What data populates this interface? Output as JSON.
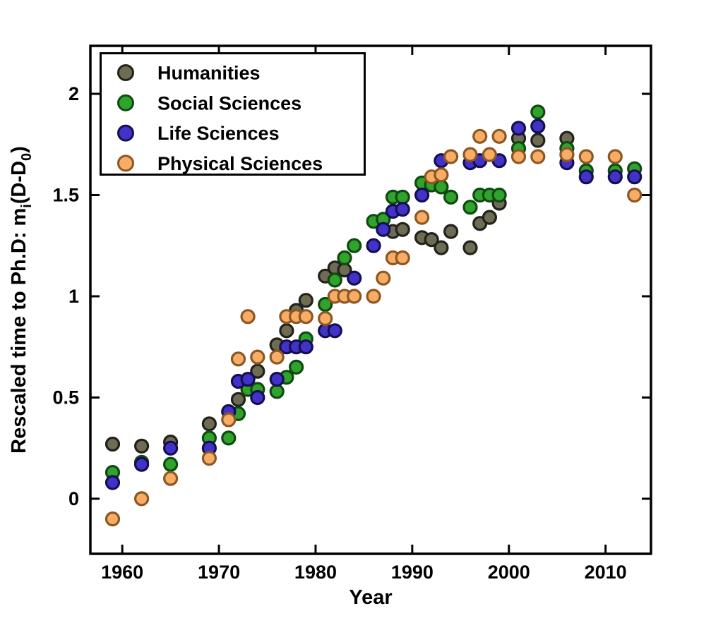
{
  "chart_data": {
    "type": "scatter",
    "title": "",
    "xlabel": "Year",
    "ylabel": "Rescaled time to Ph.D: m_i(D-D_0)",
    "ylabel_parts": [
      {
        "t": "Rescaled time to Ph.D: m",
        "sub": false
      },
      {
        "t": "i",
        "sub": true
      },
      {
        "t": "(D-D",
        "sub": false
      },
      {
        "t": "0",
        "sub": true
      },
      {
        "t": ")",
        "sub": false
      }
    ],
    "xlim": [
      1956.7,
      2014.7
    ],
    "ylim": [
      -0.272,
      2.237
    ],
    "grid": false,
    "legend_position": "top-left",
    "background_color": "#ffffff",
    "axis_color": "#000000",
    "x_ticks": {
      "values": [
        1960,
        1970,
        1980,
        1990,
        2000,
        2010
      ],
      "labels": [
        "1960",
        "1970",
        "1980",
        "1990",
        "2000",
        "2010"
      ]
    },
    "y_ticks": {
      "values": [
        0,
        0.5,
        1,
        1.5,
        2
      ],
      "labels": [
        "0",
        "0.5",
        "1",
        "1.5",
        "2"
      ]
    },
    "marker": {
      "shape": "circle",
      "radius": 9,
      "edge_width": 3.2
    },
    "series": [
      {
        "name": "Humanities",
        "color": "#6e6c52",
        "edge_color": "#22211a",
        "points": [
          [
            1959,
            0.27
          ],
          [
            1962,
            0.26
          ],
          [
            1965,
            0.28
          ],
          [
            1969,
            0.37
          ],
          [
            1972,
            0.49
          ],
          [
            1974,
            0.63
          ],
          [
            1976,
            0.76
          ],
          [
            1977,
            0.83
          ],
          [
            1978,
            0.93
          ],
          [
            1979,
            0.98
          ],
          [
            1981,
            1.1
          ],
          [
            1982,
            1.14
          ],
          [
            1983,
            1.13
          ],
          [
            1988,
            1.32
          ],
          [
            1989,
            1.33
          ],
          [
            1991,
            1.29
          ],
          [
            1992,
            1.28
          ],
          [
            1993,
            1.24
          ],
          [
            1994,
            1.32
          ],
          [
            1996,
            1.24
          ],
          [
            1997,
            1.36
          ],
          [
            1998,
            1.39
          ],
          [
            1999,
            1.46
          ],
          [
            2001,
            1.78
          ],
          [
            2003,
            1.77
          ],
          [
            2006,
            1.78
          ]
        ]
      },
      {
        "name": "Social Sciences",
        "color": "#30a32c",
        "edge_color": "#0f4a10",
        "points": [
          [
            1959,
            0.13
          ],
          [
            1962,
            0.18
          ],
          [
            1965,
            0.17
          ],
          [
            1969,
            0.3
          ],
          [
            1971,
            0.3
          ],
          [
            1972,
            0.42
          ],
          [
            1973,
            0.54
          ],
          [
            1974,
            0.54
          ],
          [
            1976,
            0.53
          ],
          [
            1977,
            0.6
          ],
          [
            1978,
            0.65
          ],
          [
            1979,
            0.79
          ],
          [
            1981,
            0.96
          ],
          [
            1982,
            1.08
          ],
          [
            1983,
            1.19
          ],
          [
            1984,
            1.25
          ],
          [
            1986,
            1.37
          ],
          [
            1987,
            1.38
          ],
          [
            1988,
            1.49
          ],
          [
            1989,
            1.49
          ],
          [
            1991,
            1.56
          ],
          [
            1992,
            1.55
          ],
          [
            1993,
            1.54
          ],
          [
            1994,
            1.49
          ],
          [
            1996,
            1.44
          ],
          [
            1997,
            1.5
          ],
          [
            1998,
            1.5
          ],
          [
            1999,
            1.5
          ],
          [
            2001,
            1.73
          ],
          [
            2003,
            1.91
          ],
          [
            2006,
            1.73
          ],
          [
            2008,
            1.62
          ],
          [
            2011,
            1.62
          ],
          [
            2013,
            1.63
          ]
        ]
      },
      {
        "name": "Life Sciences",
        "color": "#4233c8",
        "edge_color": "#150e52",
        "points": [
          [
            1959,
            0.08
          ],
          [
            1962,
            0.17
          ],
          [
            1965,
            0.25
          ],
          [
            1969,
            0.25
          ],
          [
            1971,
            0.43
          ],
          [
            1972,
            0.58
          ],
          [
            1973,
            0.59
          ],
          [
            1974,
            0.5
          ],
          [
            1976,
            0.59
          ],
          [
            1977,
            0.75
          ],
          [
            1978,
            0.75
          ],
          [
            1979,
            0.75
          ],
          [
            1981,
            0.83
          ],
          [
            1982,
            0.83
          ],
          [
            1984,
            1.09
          ],
          [
            1986,
            1.25
          ],
          [
            1987,
            1.33
          ],
          [
            1988,
            1.42
          ],
          [
            1989,
            1.43
          ],
          [
            1991,
            1.5
          ],
          [
            1993,
            1.67
          ],
          [
            1996,
            1.66
          ],
          [
            1997,
            1.67
          ],
          [
            1999,
            1.67
          ],
          [
            2001,
            1.83
          ],
          [
            2003,
            1.84
          ],
          [
            2006,
            1.66
          ],
          [
            2008,
            1.59
          ],
          [
            2011,
            1.59
          ],
          [
            2013,
            1.59
          ]
        ]
      },
      {
        "name": "Physical Sciences",
        "color": "#f7ad66",
        "edge_color": "#8c5722",
        "points": [
          [
            1959,
            -0.1
          ],
          [
            1962,
            0.0
          ],
          [
            1965,
            0.1
          ],
          [
            1969,
            0.2
          ],
          [
            1971,
            0.39
          ],
          [
            1972,
            0.69
          ],
          [
            1973,
            0.9
          ],
          [
            1974,
            0.7
          ],
          [
            1976,
            0.7
          ],
          [
            1977,
            0.9
          ],
          [
            1978,
            0.9
          ],
          [
            1979,
            0.9
          ],
          [
            1981,
            0.89
          ],
          [
            1982,
            1.0
          ],
          [
            1983,
            1.0
          ],
          [
            1984,
            1.0
          ],
          [
            1986,
            1.0
          ],
          [
            1987,
            1.09
          ],
          [
            1988,
            1.19
          ],
          [
            1989,
            1.19
          ],
          [
            1991,
            1.39
          ],
          [
            1992,
            1.59
          ],
          [
            1993,
            1.6
          ],
          [
            1994,
            1.69
          ],
          [
            1996,
            1.7
          ],
          [
            1997,
            1.79
          ],
          [
            1998,
            1.7
          ],
          [
            1999,
            1.79
          ],
          [
            2001,
            1.69
          ],
          [
            2003,
            1.69
          ],
          [
            2006,
            1.7
          ],
          [
            2008,
            1.69
          ],
          [
            2011,
            1.69
          ],
          [
            2013,
            1.5
          ]
        ]
      }
    ]
  }
}
